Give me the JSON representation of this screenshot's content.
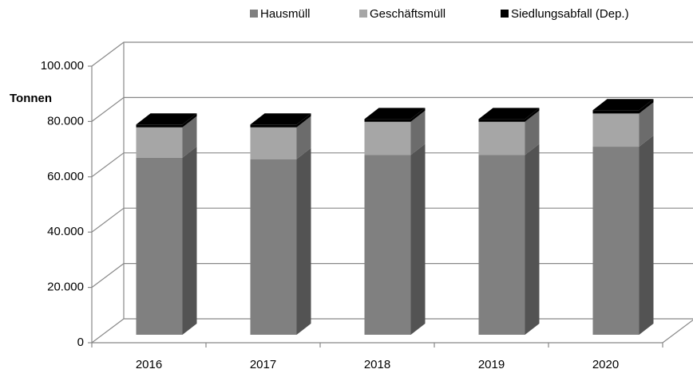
{
  "chart_data": {
    "type": "bar3d_stacked",
    "y_label": "Tonnen",
    "categories": [
      "2016",
      "2017",
      "2018",
      "2019",
      "2020"
    ],
    "series": [
      {
        "name": "Hausmüll",
        "color": "#808080",
        "values": [
          64000,
          63500,
          65000,
          65000,
          68000
        ]
      },
      {
        "name": "Geschäftsmüll",
        "color": "#a6a6a6",
        "values": [
          11000,
          11500,
          12000,
          12000,
          12000
        ]
      },
      {
        "name": "Siedlungsabfall  (Dep.)",
        "color": "#000000",
        "values": [
          1000,
          1000,
          1000,
          1000,
          1200
        ]
      }
    ],
    "ylim": [
      0,
      100000
    ],
    "yticks": [
      0,
      {
        "value": 20000,
        "label": "20.000"
      },
      {
        "value": 40000,
        "label": "40.000"
      },
      {
        "value": 60000,
        "label": "60.000"
      },
      {
        "value": 80000,
        "label": "80.000"
      },
      {
        "value": 100000,
        "label": "100.000"
      }
    ],
    "grid": true
  }
}
